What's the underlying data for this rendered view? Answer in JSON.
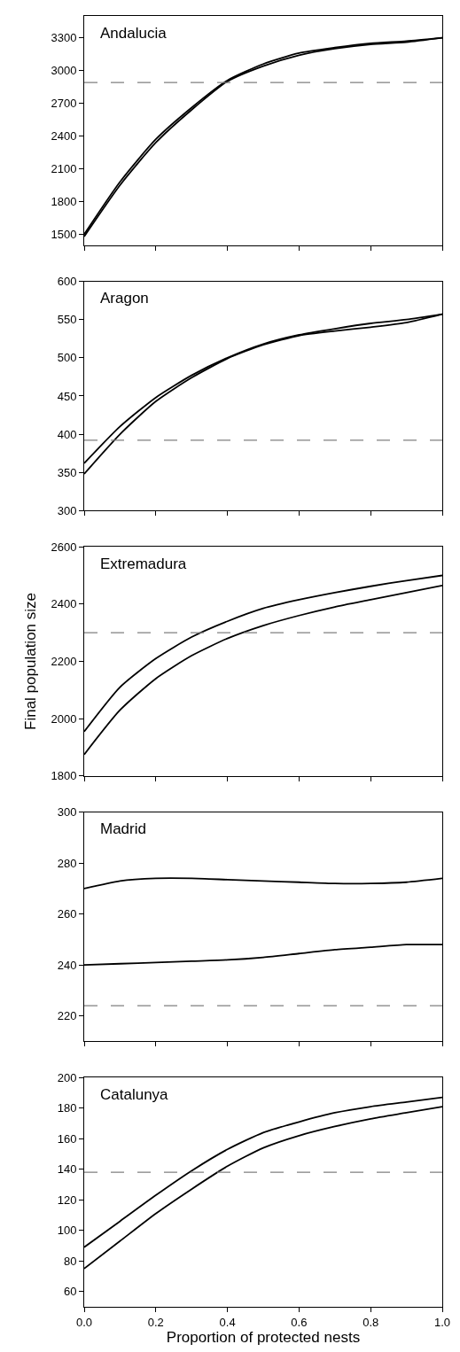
{
  "chart_data": [
    {
      "type": "line",
      "title": "Andalucia",
      "x": [
        0,
        0.1,
        0.2,
        0.3,
        0.4,
        0.5,
        0.6,
        0.7,
        0.8,
        0.9,
        1.0
      ],
      "xlim": [
        0,
        1
      ],
      "xticks": [
        0,
        0.2,
        0.4,
        0.6,
        0.8,
        1
      ],
      "ylim": [
        1400,
        3500
      ],
      "yticks": [
        1500,
        1800,
        2100,
        2400,
        2700,
        3000,
        3300
      ],
      "tick_labels": "y",
      "series": [
        {
          "color": "#000000",
          "values": [
            1500,
            1980,
            2370,
            2660,
            2910,
            3060,
            3160,
            3210,
            3250,
            3270,
            3300
          ]
        },
        {
          "color": "#000000",
          "values": [
            1480,
            1950,
            2340,
            2640,
            2900,
            3040,
            3140,
            3200,
            3240,
            3260,
            3300
          ]
        }
      ],
      "ref_lines": [
        {
          "axis": "y",
          "value": 2890,
          "color": "#808080",
          "line_style": "dashed"
        }
      ]
    },
    {
      "type": "line",
      "title": "Aragon",
      "x": [
        0,
        0.1,
        0.2,
        0.3,
        0.4,
        0.5,
        0.6,
        0.7,
        0.8,
        0.9,
        1.0
      ],
      "xlim": [
        0,
        1
      ],
      "xticks": [
        0,
        0.2,
        0.4,
        0.6,
        0.8,
        1
      ],
      "ylim": [
        300,
        600
      ],
      "yticks": [
        300,
        350,
        400,
        450,
        500,
        550,
        600
      ],
      "tick_labels": "y",
      "series": [
        {
          "color": "#000000",
          "values": [
            362,
            410,
            448,
            477,
            500,
            518,
            530,
            538,
            545,
            550,
            557
          ]
        },
        {
          "color": "#000000",
          "values": [
            348,
            400,
            443,
            474,
            499,
            517,
            529,
            535,
            540,
            546,
            557
          ]
        }
      ],
      "ref_lines": [
        {
          "axis": "y",
          "value": 392,
          "color": "#808080",
          "line_style": "dashed"
        }
      ]
    },
    {
      "type": "line",
      "title": "Extremadura",
      "ylabel": "Final population size",
      "x": [
        0,
        0.1,
        0.2,
        0.3,
        0.4,
        0.5,
        0.6,
        0.7,
        0.8,
        0.9,
        1.0
      ],
      "xlim": [
        0,
        1
      ],
      "xticks": [
        0,
        0.2,
        0.4,
        0.6,
        0.8,
        1
      ],
      "ylim": [
        1800,
        2600
      ],
      "yticks": [
        1800,
        2000,
        2200,
        2400,
        2600
      ],
      "tick_labels": "y",
      "series": [
        {
          "color": "#000000",
          "values": [
            1955,
            2110,
            2210,
            2285,
            2340,
            2385,
            2415,
            2440,
            2462,
            2482,
            2500
          ]
        },
        {
          "color": "#000000",
          "values": [
            1875,
            2030,
            2140,
            2220,
            2280,
            2325,
            2360,
            2390,
            2415,
            2440,
            2465
          ]
        }
      ],
      "ref_lines": [
        {
          "axis": "y",
          "value": 2300,
          "color": "#808080",
          "line_style": "dashed"
        }
      ]
    },
    {
      "type": "line",
      "title": "Madrid",
      "x": [
        0,
        0.1,
        0.2,
        0.3,
        0.4,
        0.5,
        0.6,
        0.7,
        0.8,
        0.9,
        1.0
      ],
      "xlim": [
        0,
        1
      ],
      "xticks": [
        0,
        0.2,
        0.4,
        0.6,
        0.8,
        1
      ],
      "ylim": [
        210,
        300
      ],
      "yticks": [
        220,
        240,
        260,
        280,
        300
      ],
      "tick_labels": "y",
      "series": [
        {
          "color": "#000000",
          "values": [
            270,
            273,
            274,
            274,
            273.5,
            273,
            272.5,
            272,
            272,
            272.5,
            274
          ]
        },
        {
          "color": "#000000",
          "values": [
            240,
            240.5,
            241,
            241.5,
            242,
            243,
            244.5,
            246,
            247,
            248,
            248
          ]
        }
      ],
      "ref_lines": [
        {
          "axis": "y",
          "value": 224,
          "color": "#808080",
          "line_style": "dashed"
        }
      ]
    },
    {
      "type": "line",
      "title": "Catalunya",
      "xlabel": "Proportion of protected nests",
      "x": [
        0,
        0.1,
        0.2,
        0.3,
        0.4,
        0.5,
        0.6,
        0.7,
        0.8,
        0.9,
        1.0
      ],
      "xlim": [
        0,
        1
      ],
      "xticks": [
        {
          "value": 0,
          "label": "0.0"
        },
        {
          "value": 0.2,
          "label": "0.2"
        },
        {
          "value": 0.4,
          "label": "0.4"
        },
        {
          "value": 0.6,
          "label": "0.6"
        },
        {
          "value": 0.8,
          "label": "0.8"
        },
        {
          "value": 1,
          "label": "1.0"
        }
      ],
      "ylim": [
        50,
        200
      ],
      "yticks": [
        60,
        80,
        100,
        120,
        140,
        160,
        180,
        200
      ],
      "series": [
        {
          "color": "#000000",
          "values": [
            89,
            106,
            123,
            139,
            153,
            164,
            171,
            177,
            181,
            184,
            187
          ]
        },
        {
          "color": "#000000",
          "values": [
            75,
            93,
            111,
            127,
            142,
            154,
            162,
            168,
            173,
            177,
            181
          ]
        }
      ],
      "ref_lines": [
        {
          "axis": "y",
          "value": 138,
          "color": "#808080",
          "line_style": "dashed"
        }
      ]
    }
  ]
}
